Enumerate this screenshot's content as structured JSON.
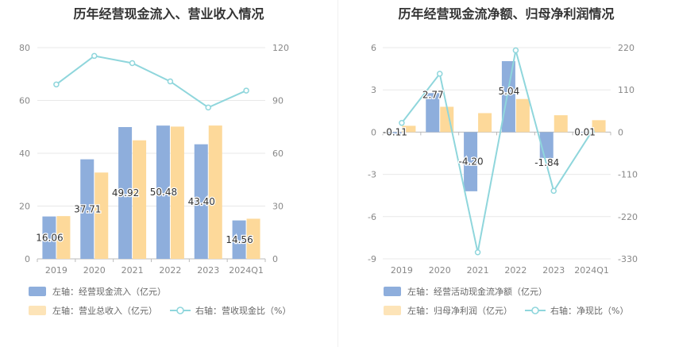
{
  "chart_data": [
    {
      "type": "bar",
      "title": "历年经营现金流入、营业收入情况",
      "categories": [
        "2019",
        "2020",
        "2021",
        "2022",
        "2023",
        "2024Q1"
      ],
      "series": [
        {
          "name": "左轴：经营现金流入（亿元）",
          "axis": "left",
          "kind": "bar",
          "color": "#8eaedc",
          "values": [
            16.06,
            37.71,
            49.92,
            50.48,
            43.4,
            14.56
          ],
          "labels": [
            "16.06",
            "37.71",
            "49.92",
            "50.48",
            "43.40",
            "14.56"
          ]
        },
        {
          "name": "左轴：营业总收入（亿元）",
          "axis": "left",
          "kind": "bar",
          "color": "#fdd99a",
          "values": [
            16.2,
            32.7,
            44.9,
            50.1,
            50.5,
            15.2
          ]
        },
        {
          "name": "右轴：营收现金比（%）",
          "axis": "right",
          "kind": "line",
          "color": "#8fd6dc",
          "values": [
            99.1,
            115.3,
            111.2,
            100.8,
            86.0,
            95.6
          ]
        }
      ],
      "y_left": {
        "min": 0,
        "max": 80,
        "ticks": [
          0,
          20,
          40,
          60,
          80
        ]
      },
      "y_right": {
        "min": 0,
        "max": 120,
        "ticks": [
          0,
          30,
          60,
          90,
          120
        ]
      },
      "grid": true,
      "legend_position": "bottom"
    },
    {
      "type": "bar",
      "title": "历年经营现金流净额、归母净利润情况",
      "categories": [
        "2019",
        "2020",
        "2021",
        "2022",
        "2023",
        "2024Q1"
      ],
      "series": [
        {
          "name": "左轴：经营活动现金流净额（亿元）",
          "axis": "left",
          "kind": "bar",
          "color": "#8eaedc",
          "values": [
            -0.11,
            2.77,
            -4.2,
            5.04,
            -1.84,
            0.01
          ],
          "labels": [
            "-0.11",
            "2.77",
            "-4.20",
            "5.04",
            "-1.84",
            "0.01"
          ]
        },
        {
          "name": "左轴：归母净利润（亿元）",
          "axis": "left",
          "kind": "bar",
          "color": "#fdd99a",
          "values": [
            0.45,
            1.8,
            1.35,
            2.35,
            1.2,
            0.85
          ]
        },
        {
          "name": "右轴：净现比（%）",
          "axis": "right",
          "kind": "line",
          "color": "#8fd6dc",
          "values": [
            24,
            152,
            -313,
            213,
            -153,
            1
          ]
        }
      ],
      "y_left": {
        "min": -9,
        "max": 6,
        "ticks": [
          -9,
          -6,
          -3,
          0,
          3,
          6
        ]
      },
      "y_right": {
        "min": -330,
        "max": 220,
        "ticks": [
          -330,
          -220,
          -110,
          0,
          110,
          220
        ]
      },
      "grid": true,
      "legend_position": "bottom"
    }
  ]
}
